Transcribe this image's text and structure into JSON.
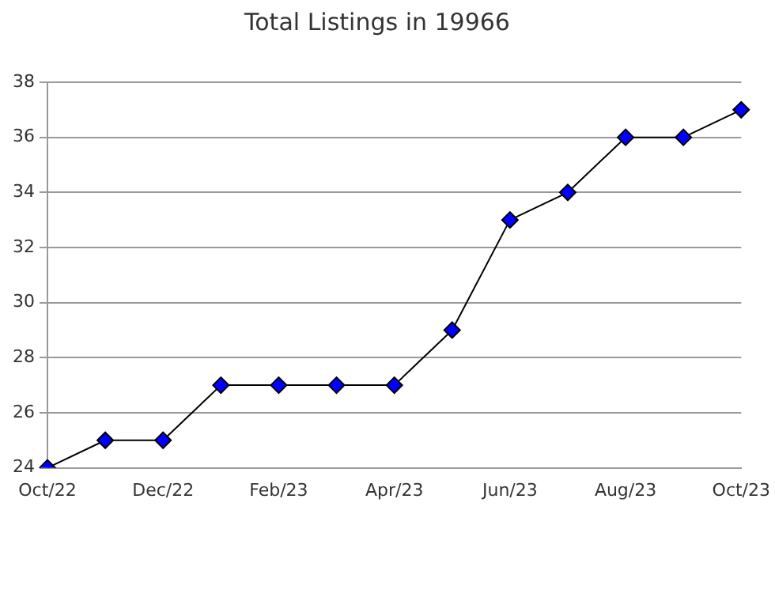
{
  "chart_data": {
    "type": "line",
    "title": "Total Listings in 19966",
    "categories": [
      "Oct/22",
      null,
      "Dec/22",
      null,
      "Feb/23",
      null,
      "Apr/23",
      null,
      "Jun/23",
      null,
      "Aug/23",
      null,
      "Oct/23"
    ],
    "series": [
      {
        "color": "#0000ff",
        "values": [
          24,
          25,
          25,
          27,
          27,
          27,
          27,
          29,
          33,
          34,
          36,
          36,
          37
        ]
      }
    ],
    "ylim": [
      24,
      38
    ],
    "yticks": [
      24,
      26,
      28,
      30,
      32,
      34,
      36,
      38
    ],
    "grid": "y",
    "legend": false,
    "marker": "diamond",
    "line_style": "solid"
  }
}
